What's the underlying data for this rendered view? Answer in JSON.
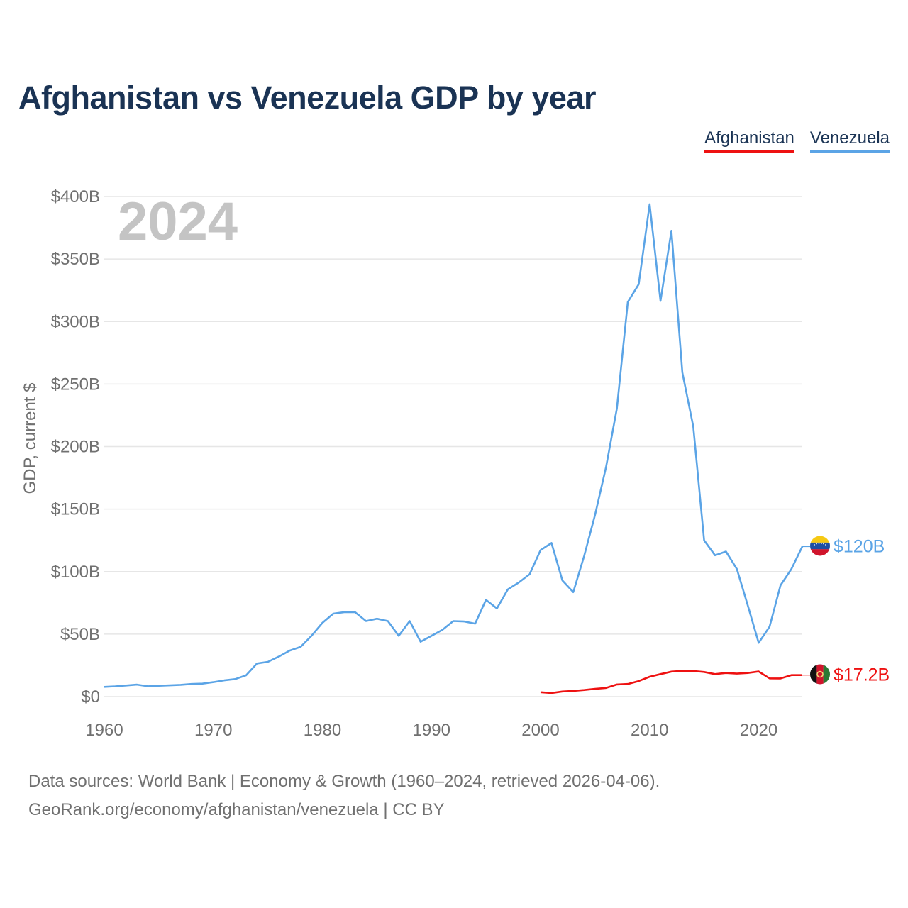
{
  "chart_data": {
    "type": "line",
    "title": "Afghanistan vs Venezuela GDP by year",
    "ylabel": "GDP, current $",
    "xlabel": "",
    "year_watermark": "2024",
    "xlim": [
      1960,
      2024
    ],
    "ylim": [
      0,
      400
    ],
    "y_unit": "billion USD",
    "x_ticks": [
      1960,
      1970,
      1980,
      1990,
      2000,
      2010,
      2020
    ],
    "x_tick_labels": [
      "1960",
      "1970",
      "1980",
      "1990",
      "2000",
      "2010",
      "2020"
    ],
    "y_ticks": [
      0,
      50,
      100,
      150,
      200,
      250,
      300,
      350,
      400
    ],
    "y_tick_labels": [
      "$0",
      "$50B",
      "$100B",
      "$150B",
      "$200B",
      "$250B",
      "$300B",
      "$350B",
      "$400B"
    ],
    "grid": true,
    "legend_position": "top-right",
    "series": [
      {
        "name": "Afghanistan",
        "color": "#ee1111",
        "end_label": "$17.2B",
        "flag_icon": "afghanistan-flag-icon",
        "x": [
          2000,
          2001,
          2002,
          2003,
          2004,
          2005,
          2006,
          2007,
          2008,
          2009,
          2010,
          2011,
          2012,
          2013,
          2014,
          2015,
          2016,
          2017,
          2018,
          2019,
          2020,
          2021,
          2022,
          2023,
          2024
        ],
        "values": [
          3.5,
          2.9,
          4.1,
          4.6,
          5.3,
          6.2,
          6.9,
          9.7,
          10.1,
          12.4,
          15.9,
          18.0,
          20.0,
          20.6,
          20.5,
          19.7,
          18.0,
          18.9,
          18.4,
          18.9,
          20.1,
          14.6,
          14.5,
          17.2,
          17.2
        ]
      },
      {
        "name": "Venezuela",
        "color": "#5ba4e6",
        "end_label": "$120B",
        "flag_icon": "venezuela-flag-icon",
        "x": [
          1960,
          1961,
          1962,
          1963,
          1964,
          1965,
          1966,
          1967,
          1968,
          1969,
          1970,
          1971,
          1972,
          1973,
          1974,
          1975,
          1976,
          1977,
          1978,
          1979,
          1980,
          1981,
          1982,
          1983,
          1984,
          1985,
          1986,
          1987,
          1988,
          1989,
          1990,
          1991,
          1992,
          1993,
          1994,
          1995,
          1996,
          1997,
          1998,
          1999,
          2000,
          2001,
          2002,
          2003,
          2004,
          2005,
          2006,
          2007,
          2008,
          2009,
          2010,
          2011,
          2012,
          2013,
          2014,
          2015,
          2016,
          2017,
          2018,
          2019,
          2020,
          2021,
          2022,
          2023,
          2024
        ],
        "values": [
          7.8,
          8.2,
          8.9,
          9.6,
          8.3,
          8.7,
          9.0,
          9.4,
          10.1,
          10.4,
          11.6,
          13.0,
          14.0,
          17.0,
          26.5,
          27.8,
          32.0,
          36.8,
          39.8,
          48.6,
          59.0,
          66.4,
          67.6,
          67.5,
          60.4,
          62.3,
          60.4,
          48.6,
          60.4,
          43.9,
          48.6,
          53.4,
          60.4,
          60.1,
          58.4,
          77.4,
          70.5,
          85.8,
          91.3,
          97.9,
          117.1,
          122.9,
          92.9,
          83.6,
          112.5,
          145.5,
          183.5,
          230.4,
          315.6,
          329.8,
          393.8,
          316.5,
          372.6,
          259.3,
          216.0,
          125.0,
          113.0,
          116.0,
          102.0,
          73.0,
          43.0,
          56.0,
          89.0,
          102.0,
          120.0
        ]
      }
    ]
  },
  "footer": {
    "line1": "Data sources: World Bank | Economy & Growth (1960–2024, retrieved 2026-04-06).",
    "line2": "GeoRank.org/economy/afghanistan/venezuela | CC BY"
  }
}
